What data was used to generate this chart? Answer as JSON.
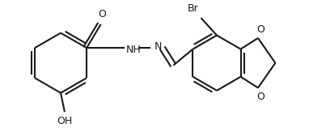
{
  "bg_color": "#ffffff",
  "line_color": "#1a1a1a",
  "line_width": 1.5,
  "figsize": [
    3.82,
    1.58
  ],
  "dpi": 100,
  "xlim": [
    0,
    382
  ],
  "ylim": [
    0,
    158
  ]
}
